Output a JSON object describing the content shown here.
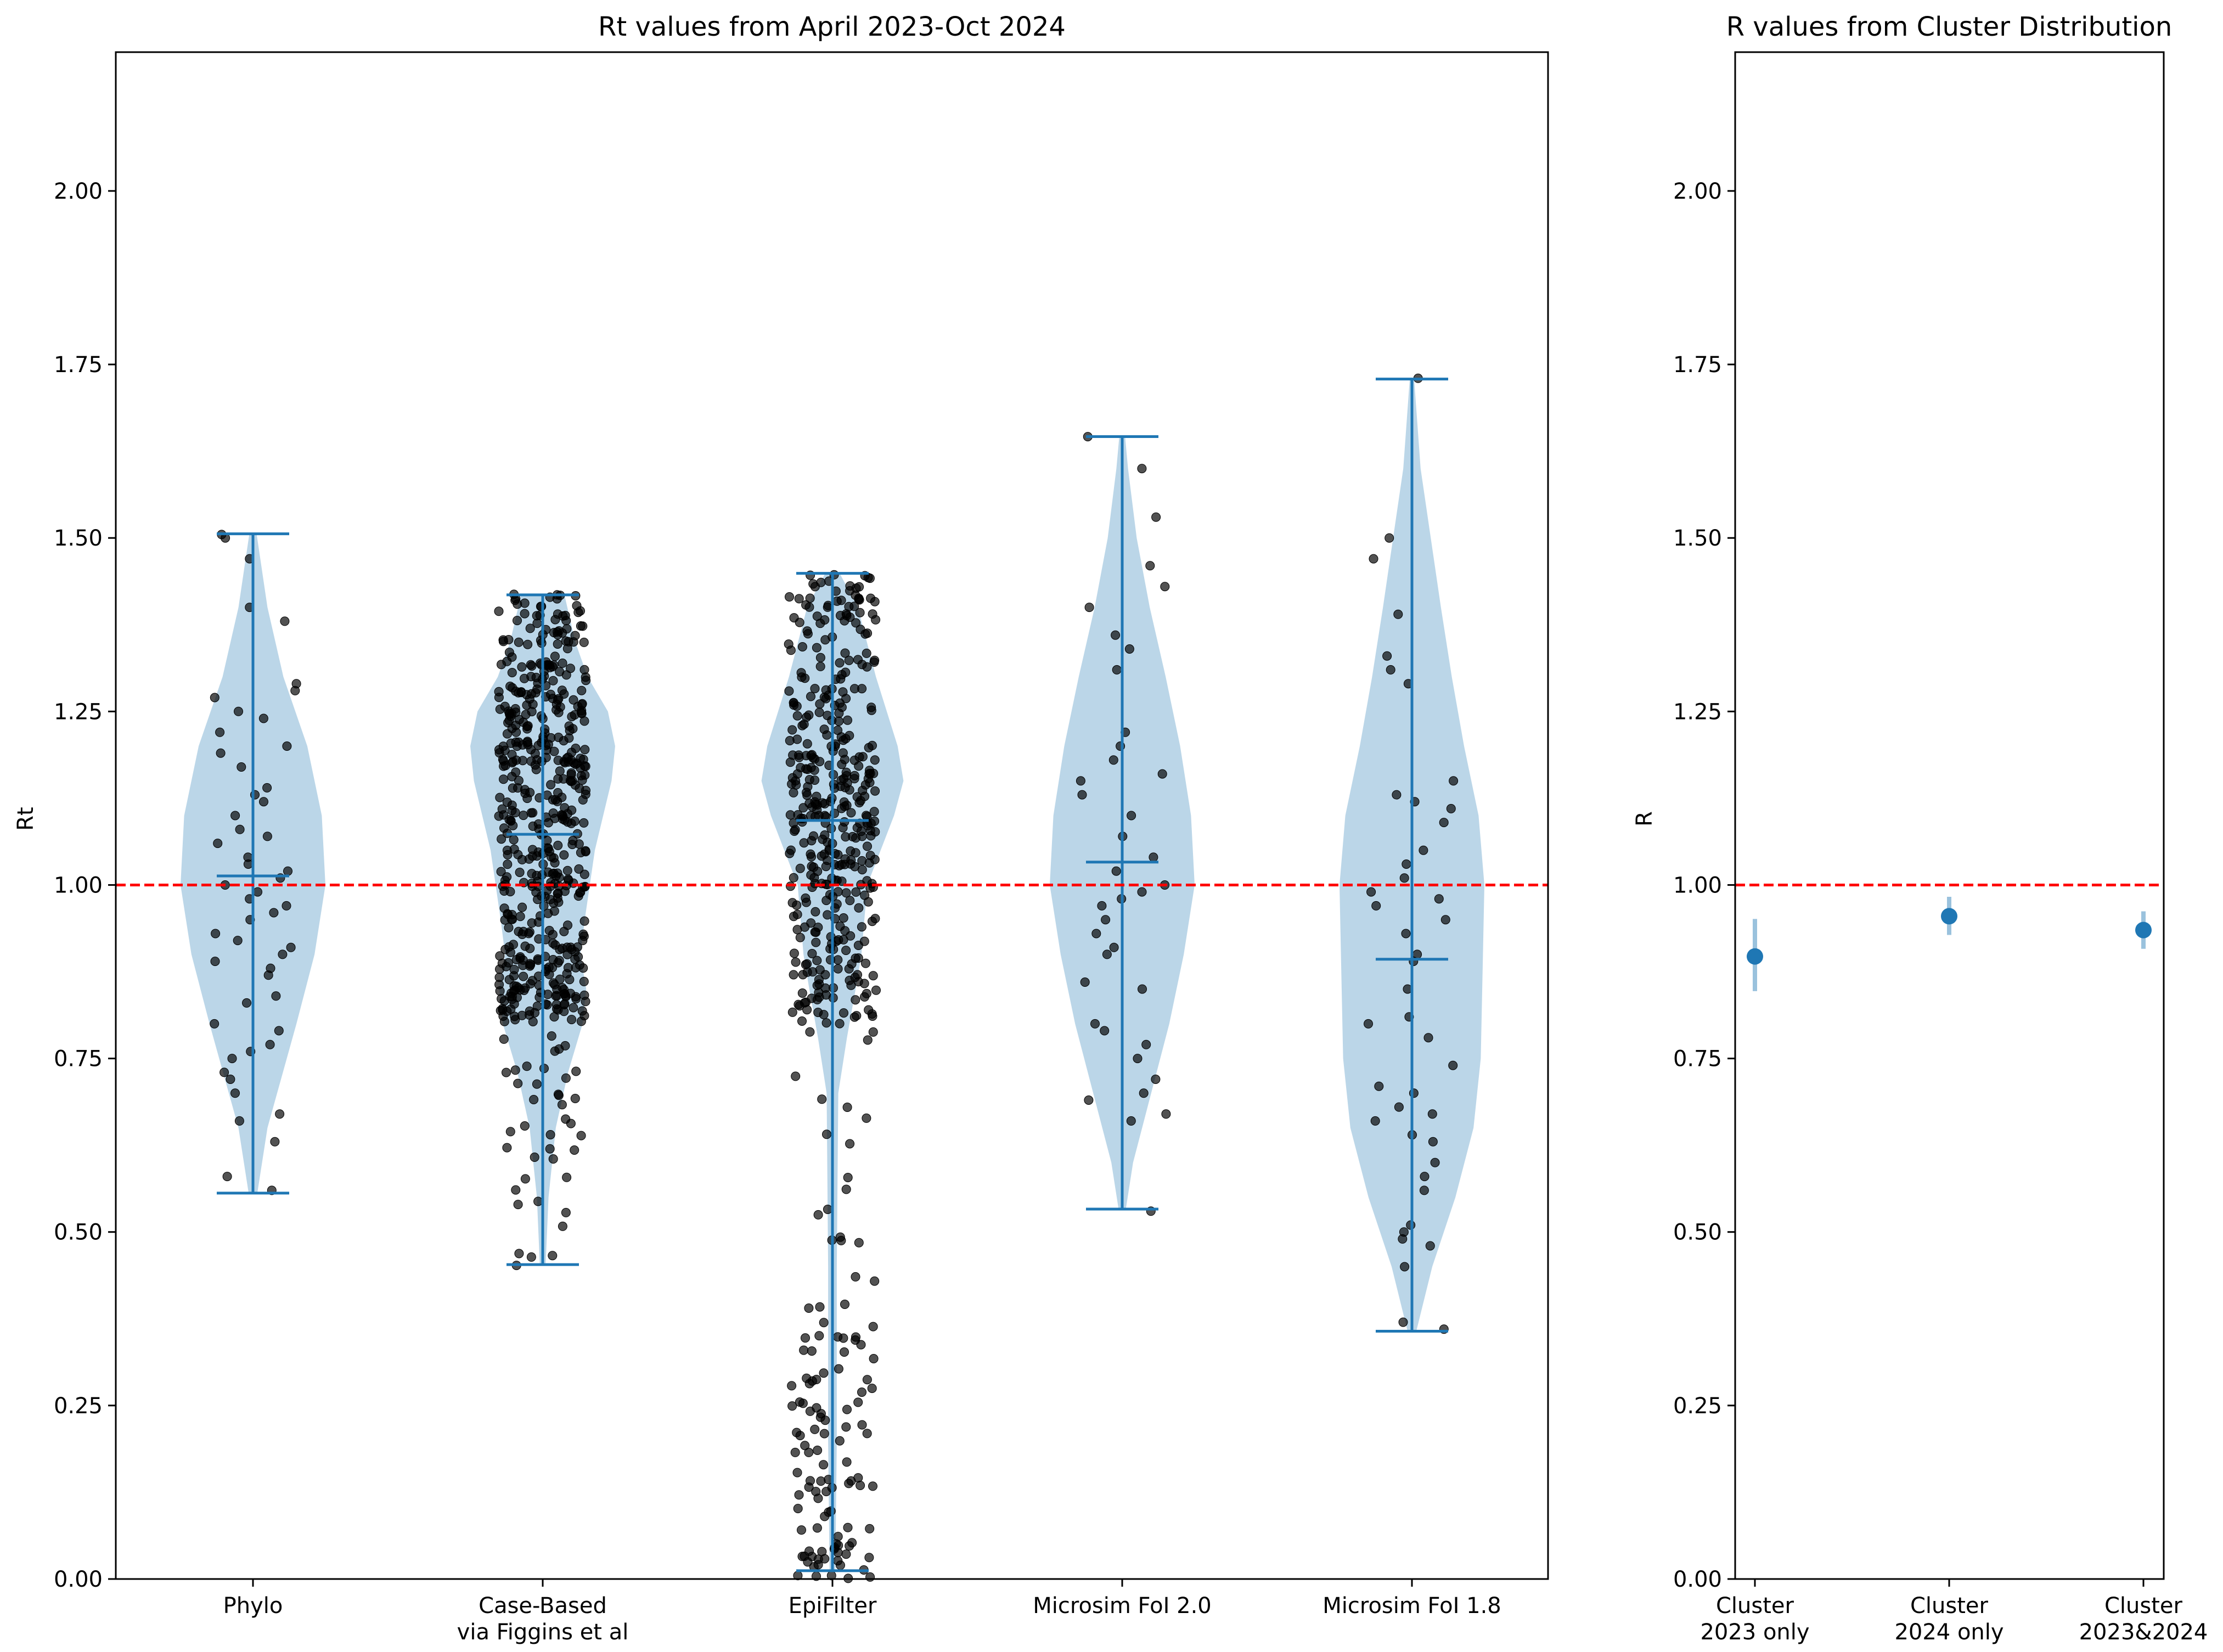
{
  "chart_data": [
    {
      "type": "violin",
      "title": "Rt values from April 2023-Oct 2024",
      "xlabel": "",
      "ylabel": "Rt",
      "ylim": [
        0,
        2.2
      ],
      "yticks": [
        "0.00",
        "0.25",
        "0.50",
        "0.75",
        "1.00",
        "1.25",
        "1.50",
        "1.75",
        "2.00"
      ],
      "reference_line": {
        "y": 1.0,
        "color": "#ff0000",
        "style": "dashed"
      },
      "violin_color": "#1f77b4",
      "point_color": "#000000",
      "categories": [
        {
          "label": "Phylo",
          "label_lines": [
            "Phylo"
          ],
          "min": 0.556,
          "max": 1.506,
          "median": 1.013,
          "profile": [
            [
              0.556,
              0.06
            ],
            [
              0.65,
              0.2
            ],
            [
              0.8,
              0.6
            ],
            [
              0.9,
              0.85
            ],
            [
              1.0,
              1.0
            ],
            [
              1.1,
              0.95
            ],
            [
              1.2,
              0.75
            ],
            [
              1.3,
              0.42
            ],
            [
              1.4,
              0.2
            ],
            [
              1.506,
              0.05
            ]
          ],
          "points": [
            0.56,
            0.58,
            0.63,
            0.66,
            0.67,
            0.7,
            0.72,
            0.73,
            0.75,
            0.76,
            0.77,
            0.79,
            0.8,
            0.83,
            0.84,
            0.87,
            0.88,
            0.89,
            0.9,
            0.91,
            0.92,
            0.93,
            0.95,
            0.96,
            0.97,
            0.98,
            0.99,
            1.0,
            1.01,
            1.02,
            1.03,
            1.04,
            1.06,
            1.07,
            1.08,
            1.1,
            1.12,
            1.13,
            1.14,
            1.17,
            1.19,
            1.2,
            1.22,
            1.24,
            1.25,
            1.27,
            1.28,
            1.29,
            1.38,
            1.4,
            1.47,
            1.5,
            1.505
          ]
        },
        {
          "label": "Case-Based via Figgins et al",
          "label_lines": [
            "Case-Based",
            "via Figgins et al"
          ],
          "min": 0.453,
          "max": 1.418,
          "median": 1.073,
          "profile": [
            [
              0.453,
              0.04
            ],
            [
              0.55,
              0.08
            ],
            [
              0.65,
              0.18
            ],
            [
              0.73,
              0.35
            ],
            [
              0.8,
              0.55
            ],
            [
              0.85,
              0.6
            ],
            [
              0.9,
              0.52
            ],
            [
              0.95,
              0.58
            ],
            [
              1.05,
              0.72
            ],
            [
              1.15,
              0.95
            ],
            [
              1.2,
              1.0
            ],
            [
              1.25,
              0.9
            ],
            [
              1.3,
              0.62
            ],
            [
              1.35,
              0.45
            ],
            [
              1.418,
              0.3
            ]
          ],
          "point_groups": [
            {
              "lo": 0.45,
              "hi": 0.8,
              "n": 40
            },
            {
              "lo": 0.8,
              "hi": 0.9,
              "n": 110
            },
            {
              "lo": 0.9,
              "hi": 1.1,
              "n": 150
            },
            {
              "lo": 1.1,
              "hi": 1.28,
              "n": 170
            },
            {
              "lo": 1.28,
              "hi": 1.42,
              "n": 90
            }
          ]
        },
        {
          "label": "EpiFilter",
          "label_lines": [
            "EpiFilter"
          ],
          "min": 0.012,
          "max": 1.449,
          "median": 1.093,
          "profile": [
            [
              0.012,
              0.04
            ],
            [
              0.2,
              0.06
            ],
            [
              0.45,
              0.06
            ],
            [
              0.7,
              0.08
            ],
            [
              0.78,
              0.2
            ],
            [
              0.85,
              0.32
            ],
            [
              0.9,
              0.4
            ],
            [
              1.0,
              0.48
            ],
            [
              1.1,
              0.85
            ],
            [
              1.15,
              0.98
            ],
            [
              1.2,
              0.9
            ],
            [
              1.3,
              0.6
            ],
            [
              1.4,
              0.35
            ],
            [
              1.449,
              0.1
            ]
          ],
          "point_groups": [
            {
              "lo": 0.0,
              "hi": 0.05,
              "n": 25
            },
            {
              "lo": 0.05,
              "hi": 0.35,
              "n": 70
            },
            {
              "lo": 0.35,
              "hi": 0.8,
              "n": 25
            },
            {
              "lo": 0.8,
              "hi": 1.0,
              "n": 110
            },
            {
              "lo": 1.0,
              "hi": 1.2,
              "n": 170
            },
            {
              "lo": 1.2,
              "hi": 1.45,
              "n": 120
            }
          ]
        },
        {
          "label": "Microsim FoI 2.0",
          "label_lines": [
            "Microsim FoI 2.0"
          ],
          "min": 0.533,
          "max": 1.646,
          "median": 1.033,
          "profile": [
            [
              0.533,
              0.05
            ],
            [
              0.6,
              0.15
            ],
            [
              0.7,
              0.4
            ],
            [
              0.8,
              0.65
            ],
            [
              0.9,
              0.85
            ],
            [
              1.0,
              1.0
            ],
            [
              1.1,
              0.95
            ],
            [
              1.2,
              0.8
            ],
            [
              1.3,
              0.6
            ],
            [
              1.4,
              0.38
            ],
            [
              1.5,
              0.2
            ],
            [
              1.6,
              0.08
            ],
            [
              1.646,
              0.04
            ]
          ],
          "points": [
            0.53,
            0.66,
            0.67,
            0.69,
            0.7,
            0.72,
            0.75,
            0.77,
            0.79,
            0.8,
            0.85,
            0.86,
            0.9,
            0.91,
            0.93,
            0.95,
            0.97,
            0.98,
            0.99,
            1.0,
            1.02,
            1.04,
            1.07,
            1.1,
            1.13,
            1.15,
            1.16,
            1.18,
            1.2,
            1.22,
            1.31,
            1.34,
            1.36,
            1.4,
            1.43,
            1.46,
            1.53,
            1.6,
            1.646
          ]
        },
        {
          "label": "Microsim FoI 1.8",
          "label_lines": [
            "Microsim FoI 1.8"
          ],
          "min": 0.357,
          "max": 1.729,
          "median": 0.893,
          "profile": [
            [
              0.357,
              0.06
            ],
            [
              0.45,
              0.28
            ],
            [
              0.55,
              0.6
            ],
            [
              0.65,
              0.85
            ],
            [
              0.75,
              0.95
            ],
            [
              0.9,
              0.98
            ],
            [
              1.0,
              1.0
            ],
            [
              1.1,
              0.92
            ],
            [
              1.2,
              0.72
            ],
            [
              1.3,
              0.55
            ],
            [
              1.4,
              0.4
            ],
            [
              1.5,
              0.26
            ],
            [
              1.6,
              0.12
            ],
            [
              1.729,
              0.03
            ]
          ],
          "points": [
            0.36,
            0.37,
            0.45,
            0.48,
            0.49,
            0.5,
            0.51,
            0.56,
            0.58,
            0.6,
            0.63,
            0.64,
            0.66,
            0.67,
            0.68,
            0.7,
            0.71,
            0.74,
            0.78,
            0.8,
            0.81,
            0.85,
            0.89,
            0.9,
            0.93,
            0.95,
            0.97,
            0.98,
            0.99,
            1.01,
            1.03,
            1.05,
            1.09,
            1.11,
            1.12,
            1.13,
            1.15,
            1.29,
            1.31,
            1.33,
            1.39,
            1.47,
            1.5,
            1.73
          ]
        }
      ]
    },
    {
      "type": "errorbar",
      "title": "R values from Cluster Distribution",
      "xlabel": "",
      "ylabel": "R",
      "ylim": [
        0,
        2.2
      ],
      "yticks": [
        "0.00",
        "0.25",
        "0.50",
        "0.75",
        "1.00",
        "1.25",
        "1.50",
        "1.75",
        "2.00"
      ],
      "reference_line": {
        "y": 1.0,
        "color": "#ff0000",
        "style": "dashed"
      },
      "point_color": "#1f77b4",
      "categories": [
        {
          "label": "Cluster 2023 only",
          "label_lines": [
            "Cluster",
            "2023 only"
          ],
          "value": 0.897,
          "lower": 0.847,
          "upper": 0.951
        },
        {
          "label": "Cluster 2024 only",
          "label_lines": [
            "Cluster",
            "2024 only"
          ],
          "value": 0.955,
          "lower": 0.928,
          "upper": 0.983
        },
        {
          "label": "Cluster 2023&2024",
          "label_lines": [
            "Cluster",
            "2023&2024"
          ],
          "value": 0.935,
          "lower": 0.908,
          "upper": 0.962
        }
      ]
    }
  ]
}
